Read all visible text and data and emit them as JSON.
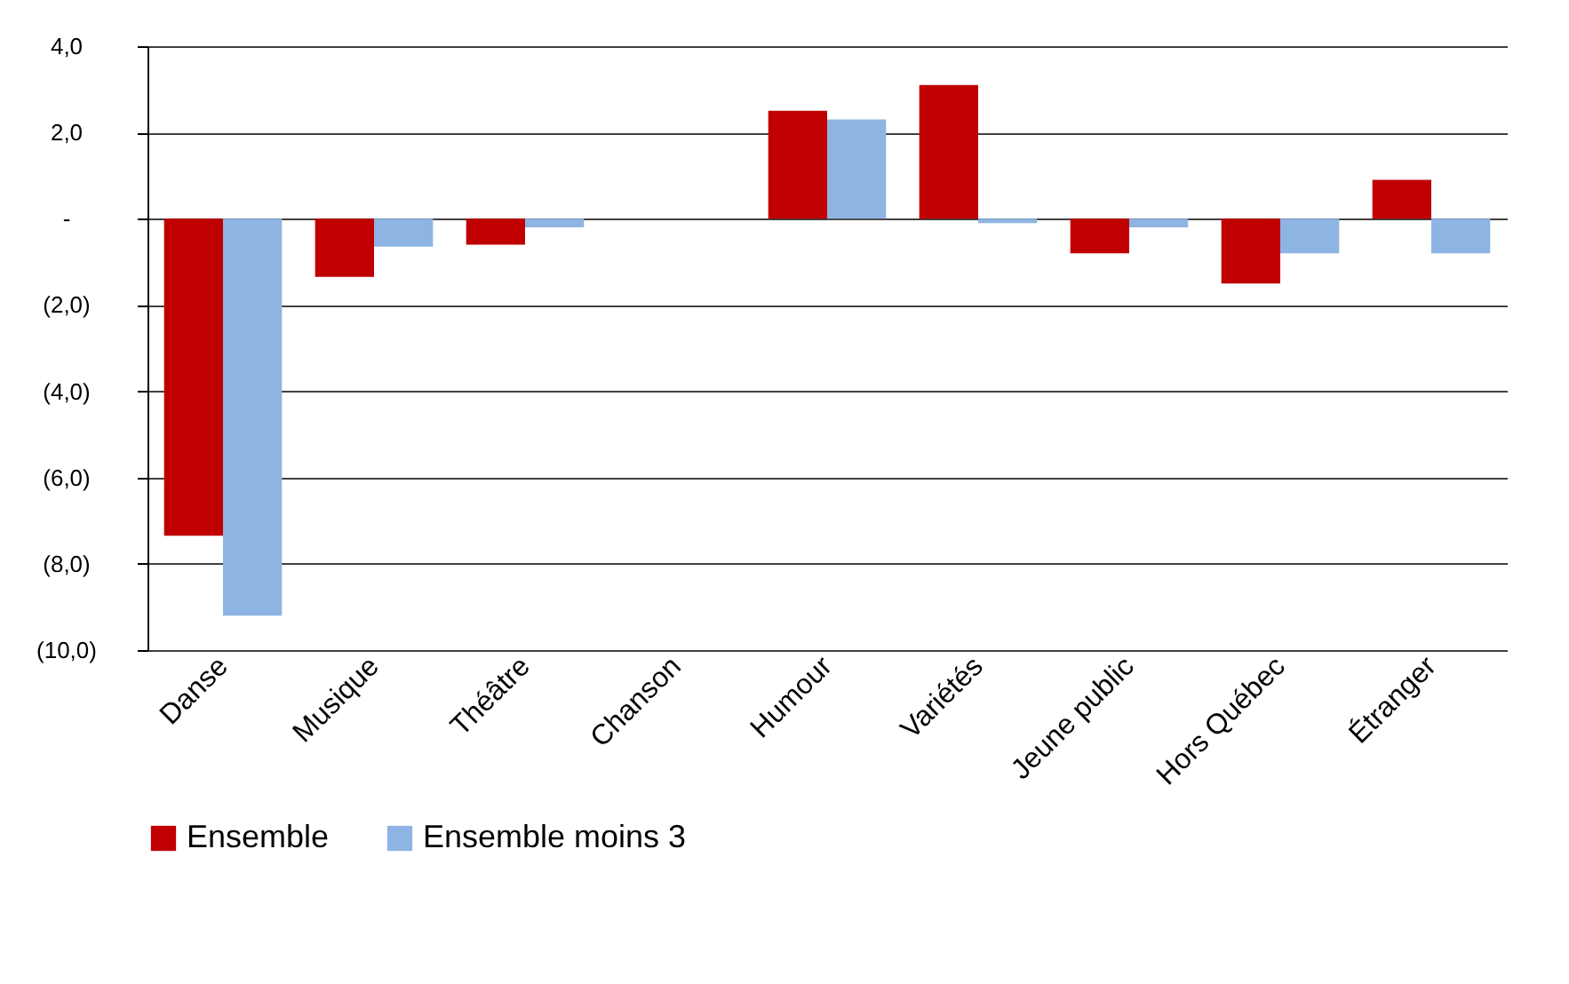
{
  "chart_data": {
    "type": "bar",
    "categories": [
      "Danse",
      "Musique",
      "Théâtre",
      "Chanson",
      "Humour",
      "Variétés",
      "Jeune public",
      "Hors Québec",
      "Étranger"
    ],
    "series": [
      {
        "name": "Ensemble",
        "color": "#c00000",
        "values": [
          -7.35,
          -1.35,
          -0.6,
          0,
          2.5,
          3.1,
          -0.8,
          -1.5,
          0.9
        ]
      },
      {
        "name": "Ensemble moins 3",
        "color": "#8db4e2",
        "values": [
          -9.2,
          -0.65,
          -0.2,
          0,
          2.3,
          -0.1,
          -0.2,
          -0.8,
          -0.8
        ]
      }
    ],
    "ylim": [
      -10,
      4
    ],
    "yticks": [
      {
        "value": 4,
        "label": "4,0"
      },
      {
        "value": 2,
        "label": "2,0"
      },
      {
        "value": 0,
        "label": "-"
      },
      {
        "value": -2,
        "label": "(2,0)"
      },
      {
        "value": -4,
        "label": "(4,0)"
      },
      {
        "value": -6,
        "label": "(6,0)"
      },
      {
        "value": -8,
        "label": "(8,0)"
      },
      {
        "value": -10,
        "label": "(10,0)"
      }
    ],
    "grid": "y",
    "legend": "bottom"
  }
}
